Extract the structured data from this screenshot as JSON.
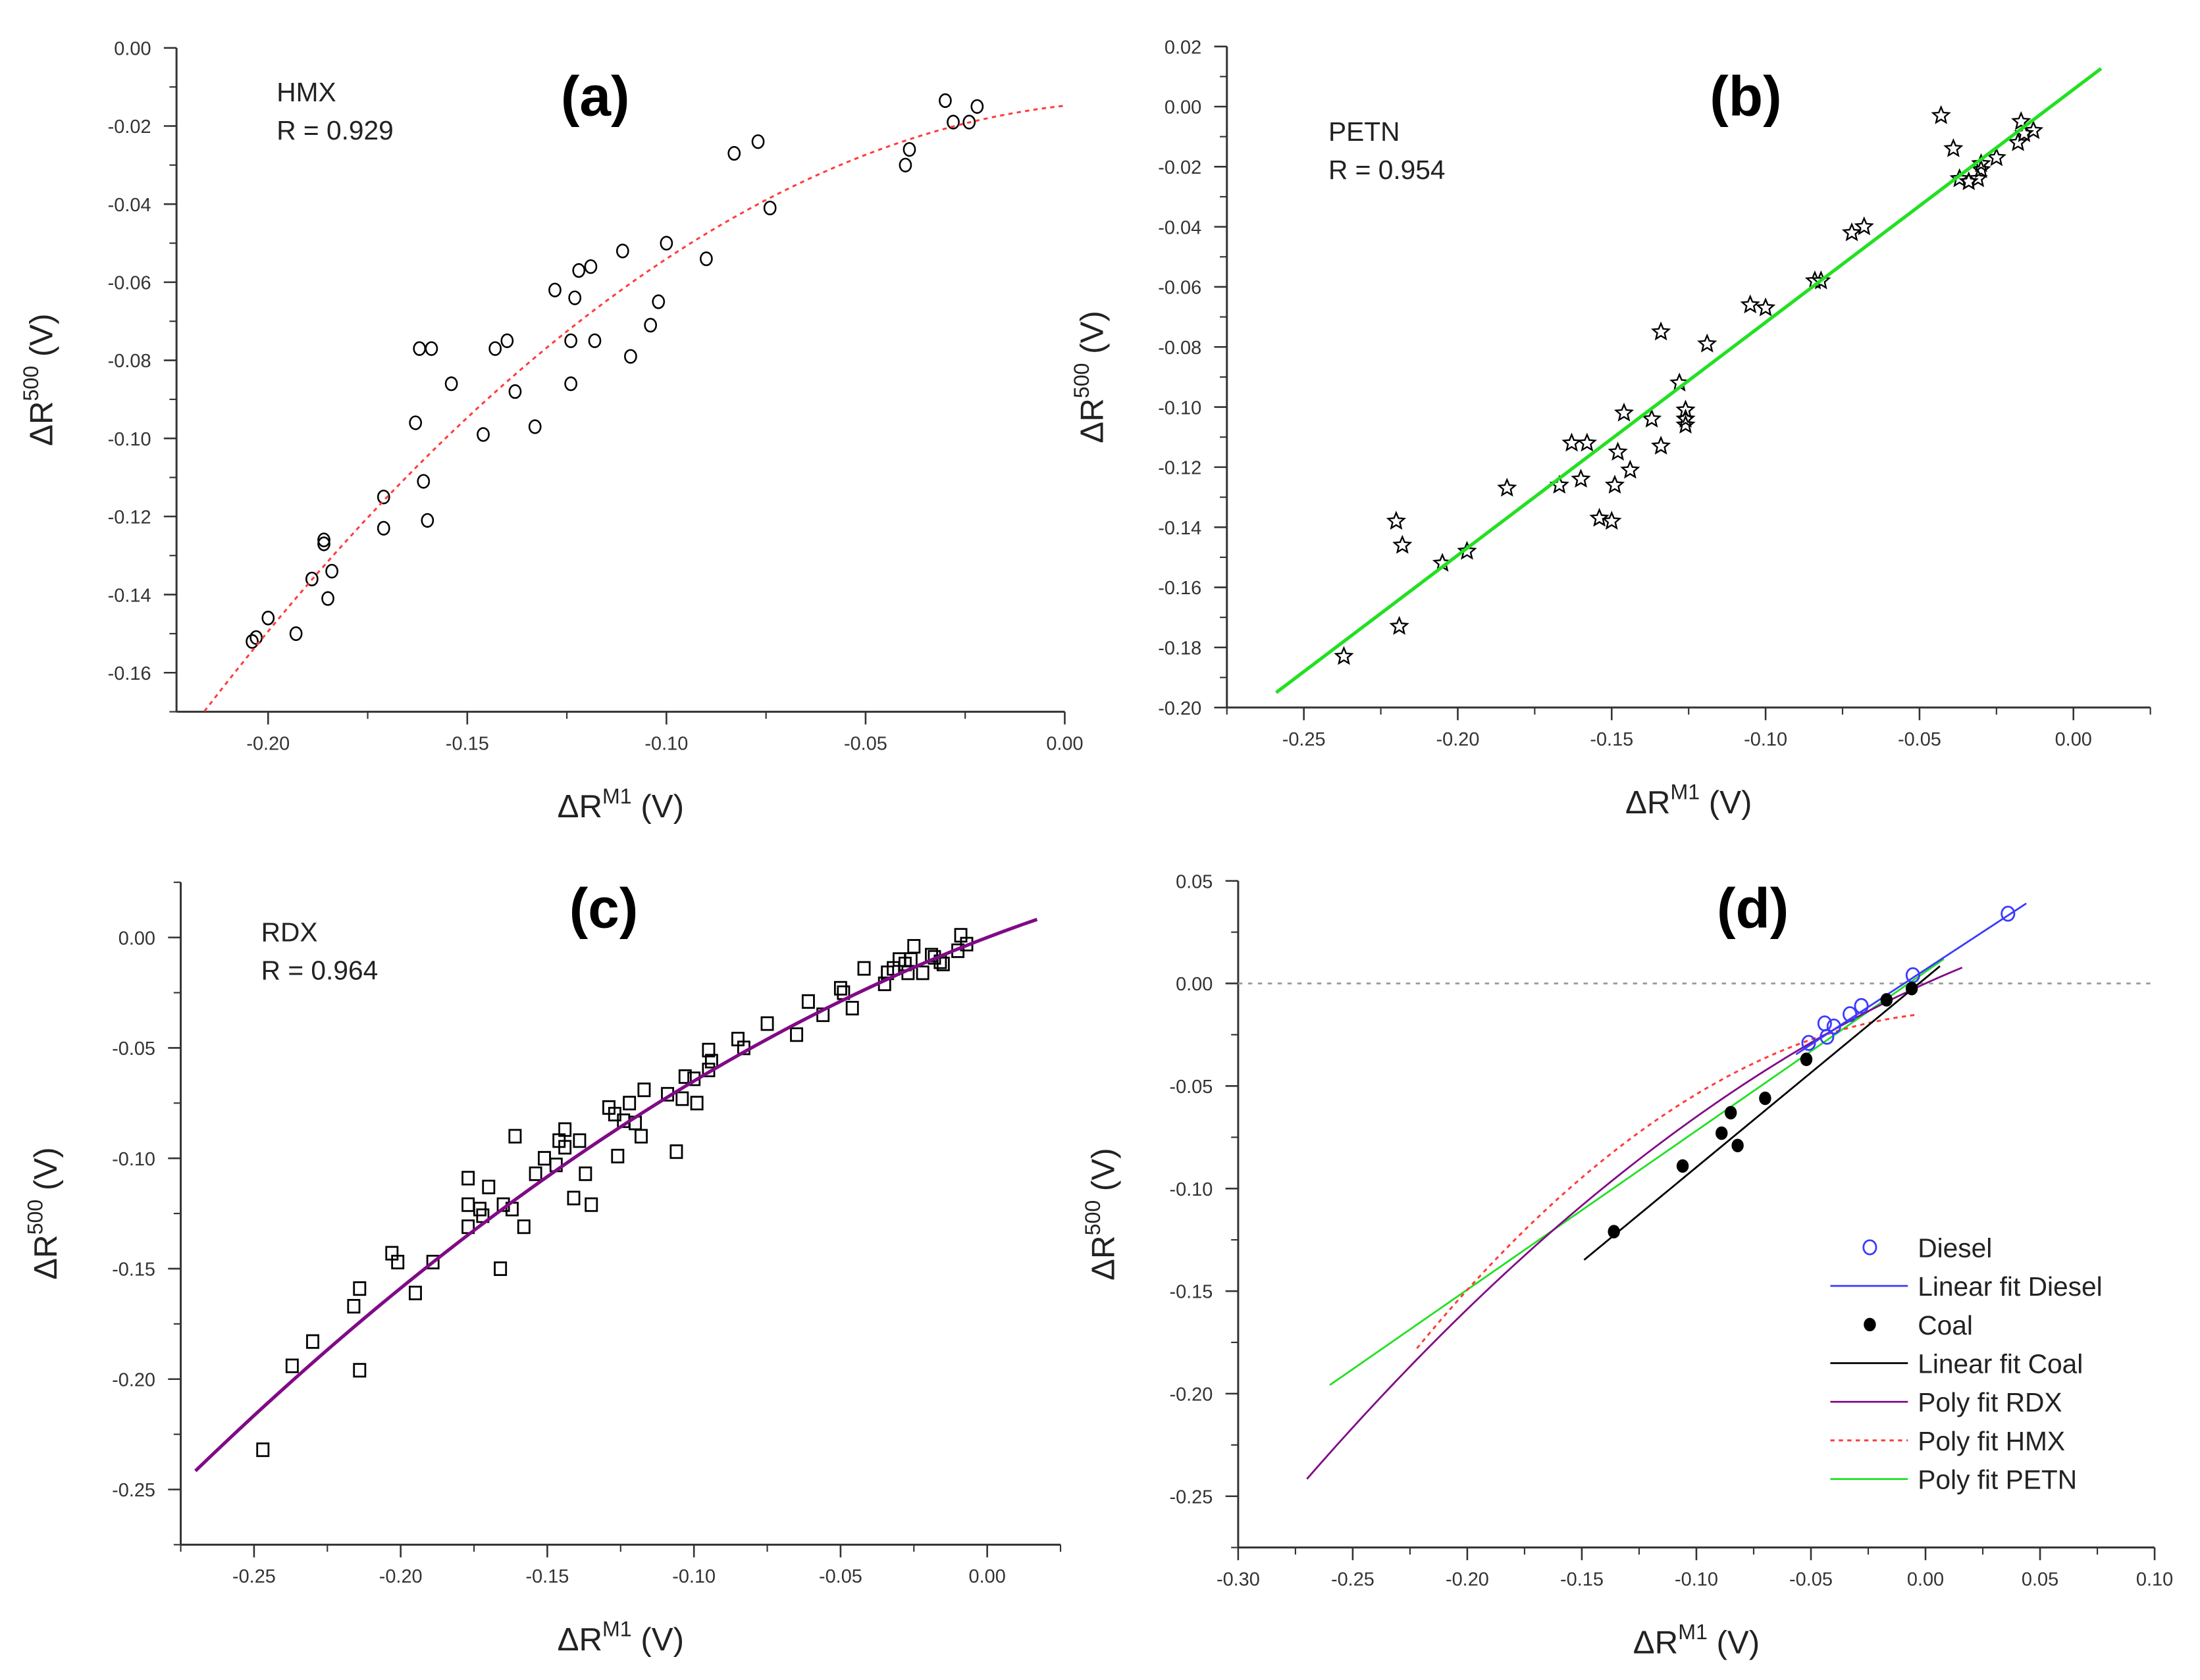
{
  "colors": {
    "axis": "#333333",
    "marker": "#000000",
    "hmx_fit": "#ff3b3b",
    "petn_fit": "#22e022",
    "rdx_fit": "#800a86",
    "diesel": "#3a3aff",
    "coal": "#000000",
    "zero_line": "#999999"
  },
  "chart_data": [
    {
      "id": "a",
      "panel_label": "(a)",
      "type": "scatter",
      "title": "HMX",
      "annotation": "R = 0.929",
      "xlabel": "ΔR",
      "xlabel_sup": "M1",
      "xlabel_unit": " (V)",
      "ylabel": "ΔR",
      "ylabel_sup": "500",
      "ylabel_unit": " (V)",
      "xlim": [
        -0.223,
        0.0
      ],
      "ylim": [
        -0.17,
        0.0
      ],
      "xticks": [
        "-0.20",
        "-0.15",
        "-0.10",
        "-0.05",
        "0.00"
      ],
      "yticks": [
        "0.00",
        "-0.02",
        "-0.04",
        "-0.06",
        "-0.08",
        "-0.10",
        "-0.12",
        "-0.14",
        "-0.16"
      ],
      "xminor": 0.025,
      "yminor": 0.01,
      "marker": "circle-open",
      "points": [
        [
          -0.204,
          -0.152
        ],
        [
          -0.203,
          -0.151
        ],
        [
          -0.2,
          -0.146
        ],
        [
          -0.193,
          -0.15
        ],
        [
          -0.189,
          -0.136
        ],
        [
          -0.186,
          -0.127
        ],
        [
          -0.186,
          -0.126
        ],
        [
          -0.184,
          -0.134
        ],
        [
          -0.185,
          -0.141
        ],
        [
          -0.171,
          -0.115
        ],
        [
          -0.171,
          -0.123
        ],
        [
          -0.163,
          -0.096
        ],
        [
          -0.162,
          -0.077
        ],
        [
          -0.159,
          -0.077
        ],
        [
          -0.161,
          -0.111
        ],
        [
          -0.16,
          -0.121
        ],
        [
          -0.154,
          -0.086
        ],
        [
          -0.146,
          -0.099
        ],
        [
          -0.143,
          -0.077
        ],
        [
          -0.14,
          -0.075
        ],
        [
          -0.138,
          -0.088
        ],
        [
          -0.133,
          -0.097
        ],
        [
          -0.128,
          -0.062
        ],
        [
          -0.124,
          -0.075
        ],
        [
          -0.124,
          -0.086
        ],
        [
          -0.123,
          -0.064
        ],
        [
          -0.122,
          -0.057
        ],
        [
          -0.119,
          -0.056
        ],
        [
          -0.118,
          -0.075
        ],
        [
          -0.111,
          -0.052
        ],
        [
          -0.109,
          -0.079
        ],
        [
          -0.104,
          -0.071
        ],
        [
          -0.102,
          -0.065
        ],
        [
          -0.1,
          -0.05
        ],
        [
          -0.09,
          -0.054
        ],
        [
          -0.083,
          -0.027
        ],
        [
          -0.077,
          -0.024
        ],
        [
          -0.074,
          -0.041
        ],
        [
          -0.04,
          -0.03
        ],
        [
          -0.039,
          -0.026
        ],
        [
          -0.03,
          -0.0135
        ],
        [
          -0.028,
          -0.019
        ],
        [
          -0.024,
          -0.019
        ],
        [
          -0.022,
          -0.015
        ]
      ],
      "fits": [
        {
          "name": "Poly fit HMX",
          "type": "poly",
          "coef": [
            -0.0148,
            0.111,
            -2.81
          ],
          "range": [
            -0.216,
            0.0
          ],
          "style": "dotted",
          "color_key": "hmx_fit"
        }
      ]
    },
    {
      "id": "b",
      "panel_label": "(b)",
      "type": "scatter",
      "title": "PETN",
      "annotation": "R = 0.954",
      "xlabel": "ΔR",
      "xlabel_sup": "M1",
      "xlabel_unit": " (V)",
      "ylabel": "ΔR",
      "ylabel_sup": "500",
      "ylabel_unit": " (V)",
      "xlim": [
        -0.275,
        0.025
      ],
      "ylim": [
        -0.2,
        0.02
      ],
      "xticks": [
        "-0.25",
        "-0.20",
        "-0.15",
        "-0.10",
        "-0.05",
        "0.00"
      ],
      "yticks": [
        "0.02",
        "0.00",
        "-0.02",
        "-0.04",
        "-0.06",
        "-0.08",
        "-0.10",
        "-0.12",
        "-0.14",
        "-0.16",
        "-0.18",
        "-0.20"
      ],
      "xminor": 0.025,
      "yminor": 0.01,
      "marker": "star-open",
      "points": [
        [
          -0.237,
          -0.183
        ],
        [
          -0.219,
          -0.173
        ],
        [
          -0.22,
          -0.138
        ],
        [
          -0.218,
          -0.146
        ],
        [
          -0.205,
          -0.152
        ],
        [
          -0.197,
          -0.148
        ],
        [
          -0.184,
          -0.127
        ],
        [
          -0.167,
          -0.126
        ],
        [
          -0.163,
          -0.112
        ],
        [
          -0.158,
          -0.112
        ],
        [
          -0.16,
          -0.124
        ],
        [
          -0.154,
          -0.137
        ],
        [
          -0.15,
          -0.138
        ],
        [
          -0.149,
          -0.126
        ],
        [
          -0.148,
          -0.115
        ],
        [
          -0.144,
          -0.121
        ],
        [
          -0.146,
          -0.102
        ],
        [
          -0.137,
          -0.104
        ],
        [
          -0.134,
          -0.113
        ],
        [
          -0.134,
          -0.075
        ],
        [
          -0.128,
          -0.092
        ],
        [
          -0.126,
          -0.101
        ],
        [
          -0.126,
          -0.104
        ],
        [
          -0.126,
          -0.106
        ],
        [
          -0.119,
          -0.079
        ],
        [
          -0.105,
          -0.066
        ],
        [
          -0.1,
          -0.067
        ],
        [
          -0.084,
          -0.058
        ],
        [
          -0.082,
          -0.058
        ],
        [
          -0.072,
          -0.042
        ],
        [
          -0.068,
          -0.04
        ],
        [
          -0.043,
          -0.003
        ],
        [
          -0.039,
          -0.014
        ],
        [
          -0.037,
          -0.024
        ],
        [
          -0.034,
          -0.025
        ],
        [
          -0.031,
          -0.024
        ],
        [
          -0.03,
          -0.021
        ],
        [
          -0.03,
          -0.019
        ],
        [
          -0.025,
          -0.017
        ],
        [
          -0.018,
          -0.012
        ],
        [
          -0.017,
          -0.005
        ],
        [
          -0.016,
          -0.009
        ],
        [
          -0.013,
          -0.008
        ]
      ],
      "fits": [
        {
          "name": "Poly fit PETN",
          "type": "poly",
          "coef": [
            0.0057,
            0.775,
            0
          ],
          "range": [
            -0.259,
            0.009
          ],
          "style": "solid-thick",
          "color_key": "petn_fit"
        }
      ]
    },
    {
      "id": "c",
      "panel_label": "(c)",
      "type": "scatter",
      "title": "RDX",
      "annotation": "R = 0.964",
      "xlabel": "ΔR",
      "xlabel_sup": "M1",
      "xlabel_unit": " (V)",
      "ylabel": "ΔR",
      "ylabel_sup": "500",
      "ylabel_unit": " (V)",
      "xlim": [
        -0.275,
        0.025
      ],
      "ylim": [
        -0.275,
        0.025
      ],
      "xticks": [
        "-0.25",
        "-0.20",
        "-0.15",
        "-0.10",
        "-0.05",
        "0.00"
      ],
      "yticks": [
        "0.00",
        "-0.05",
        "-0.10",
        "-0.15",
        "-0.20",
        "-0.25"
      ],
      "xminor": 0.025,
      "yminor": 0.025,
      "marker": "square-open",
      "points": [
        [
          -0.247,
          -0.232
        ],
        [
          -0.237,
          -0.194
        ],
        [
          -0.23,
          -0.183
        ],
        [
          -0.216,
          -0.167
        ],
        [
          -0.214,
          -0.159
        ],
        [
          -0.214,
          -0.196
        ],
        [
          -0.203,
          -0.143
        ],
        [
          -0.201,
          -0.147
        ],
        [
          -0.195,
          -0.161
        ],
        [
          -0.189,
          -0.147
        ],
        [
          -0.177,
          -0.109
        ],
        [
          -0.177,
          -0.121
        ],
        [
          -0.177,
          -0.131
        ],
        [
          -0.173,
          -0.123
        ],
        [
          -0.172,
          -0.126
        ],
        [
          -0.17,
          -0.113
        ],
        [
          -0.166,
          -0.15
        ],
        [
          -0.165,
          -0.121
        ],
        [
          -0.162,
          -0.123
        ],
        [
          -0.161,
          -0.09
        ],
        [
          -0.158,
          -0.131
        ],
        [
          -0.154,
          -0.107
        ],
        [
          -0.151,
          -0.1
        ],
        [
          -0.147,
          -0.103
        ],
        [
          -0.146,
          -0.092
        ],
        [
          -0.144,
          -0.095
        ],
        [
          -0.144,
          -0.087
        ],
        [
          -0.141,
          -0.118
        ],
        [
          -0.139,
          -0.092
        ],
        [
          -0.137,
          -0.107
        ],
        [
          -0.135,
          -0.121
        ],
        [
          -0.129,
          -0.077
        ],
        [
          -0.127,
          -0.08
        ],
        [
          -0.126,
          -0.099
        ],
        [
          -0.124,
          -0.083
        ],
        [
          -0.122,
          -0.075
        ],
        [
          -0.12,
          -0.084
        ],
        [
          -0.118,
          -0.09
        ],
        [
          -0.117,
          -0.069
        ],
        [
          -0.109,
          -0.071
        ],
        [
          -0.106,
          -0.097
        ],
        [
          -0.104,
          -0.073
        ],
        [
          -0.103,
          -0.063
        ],
        [
          -0.1,
          -0.064
        ],
        [
          -0.099,
          -0.075
        ],
        [
          -0.095,
          -0.051
        ],
        [
          -0.095,
          -0.06
        ],
        [
          -0.094,
          -0.056
        ],
        [
          -0.085,
          -0.046
        ],
        [
          -0.083,
          -0.05
        ],
        [
          -0.075,
          -0.039
        ],
        [
          -0.065,
          -0.044
        ],
        [
          -0.061,
          -0.029
        ],
        [
          -0.056,
          -0.035
        ],
        [
          -0.05,
          -0.023
        ],
        [
          -0.049,
          -0.025
        ],
        [
          -0.046,
          -0.032
        ],
        [
          -0.042,
          -0.014
        ],
        [
          -0.035,
          -0.021
        ],
        [
          -0.034,
          -0.016
        ],
        [
          -0.032,
          -0.014
        ],
        [
          -0.03,
          -0.01
        ],
        [
          -0.028,
          -0.012
        ],
        [
          -0.027,
          -0.016
        ],
        [
          -0.025,
          -0.004
        ],
        [
          -0.026,
          -0.01
        ],
        [
          -0.022,
          -0.016
        ],
        [
          -0.019,
          -0.008
        ],
        [
          -0.018,
          -0.009
        ],
        [
          -0.016,
          -0.011
        ],
        [
          -0.015,
          -0.012
        ],
        [
          -0.01,
          -0.006
        ],
        [
          -0.009,
          0.001
        ],
        [
          -0.007,
          -0.003
        ]
      ],
      "fits": [
        {
          "name": "Poly fit RDX",
          "type": "poly",
          "coef": [
            0.0,
            0.506,
            -1.44
          ],
          "range": [
            -0.27,
            0.017
          ],
          "style": "solid-thick",
          "color_key": "rdx_fit"
        }
      ]
    },
    {
      "id": "d",
      "panel_label": "(d)",
      "type": "scatter",
      "xlabel": "ΔR",
      "xlabel_sup": "M1",
      "xlabel_unit": " (V)",
      "ylabel": "ΔR",
      "ylabel_sup": "500",
      "ylabel_unit": " (V)",
      "xlim": [
        -0.3,
        0.1
      ],
      "ylim": [
        -0.275,
        0.05
      ],
      "xticks": [
        "-0.30",
        "-0.25",
        "-0.20",
        "-0.15",
        "-0.10",
        "-0.05",
        "0.00",
        "0.05",
        "0.10"
      ],
      "yticks": [
        "0.05",
        "0.00",
        "-0.05",
        "-0.10",
        "-0.15",
        "-0.20",
        "-0.25"
      ],
      "xminor": 0.025,
      "yminor": 0.025,
      "zero_line": true,
      "legend_position": "bottom-right",
      "series": [
        {
          "name": "Diesel",
          "marker": "circle-open-blue",
          "color_key": "diesel",
          "points": [
            [
              0.036,
              0.034
            ],
            [
              -0.044,
              -0.0195
            ],
            [
              -0.04,
              -0.021
            ],
            [
              -0.043,
              -0.026
            ],
            [
              -0.051,
              -0.029
            ],
            [
              -0.033,
              -0.015
            ],
            [
              -0.028,
              -0.011
            ],
            [
              -0.0055,
              0.004
            ]
          ]
        },
        {
          "name": "Coal",
          "marker": "circle-filled",
          "color_key": "coal",
          "points": [
            [
              -0.136,
              -0.121
            ],
            [
              -0.106,
              -0.089
            ],
            [
              -0.089,
              -0.073
            ],
            [
              -0.082,
              -0.079
            ],
            [
              -0.085,
              -0.063
            ],
            [
              -0.07,
              -0.056
            ],
            [
              -0.052,
              -0.037
            ],
            [
              -0.017,
              -0.008
            ],
            [
              -0.006,
              -0.0025
            ]
          ]
        }
      ],
      "fits": [
        {
          "name": "Linear fit Diesel",
          "type": "poly",
          "coef": [
            0.0068,
            0.732,
            0
          ],
          "range": [
            -0.0565,
            0.044
          ],
          "style": "solid",
          "color_key": "diesel"
        },
        {
          "name": "Linear fit Coal",
          "type": "poly",
          "coef": [
            0.0026,
            0.922,
            0
          ],
          "range": [
            -0.149,
            0.0063
          ],
          "style": "solid",
          "color_key": "coal"
        },
        {
          "name": "Poly fit RDX",
          "type": "poly",
          "coef": [
            0.0,
            0.506,
            -1.44
          ],
          "range": [
            -0.27,
            0.016
          ],
          "style": "solid",
          "color_key": "rdx_fit"
        },
        {
          "name": "Poly fit HMX",
          "type": "poly",
          "coef": [
            -0.0148,
            0.111,
            -2.81
          ],
          "range": [
            -0.222,
            -0.003
          ],
          "style": "dotted",
          "color_key": "hmx_fit"
        },
        {
          "name": "Poly fit PETN",
          "type": "poly",
          "coef": [
            0.0057,
            0.775,
            0
          ],
          "range": [
            -0.26,
            0.008
          ],
          "style": "solid",
          "color_key": "petn_fit"
        }
      ],
      "legend": [
        "Diesel",
        "Linear fit Diesel",
        "Coal",
        "Linear fit Coal",
        "Poly fit RDX",
        "Poly fit HMX",
        "Poly fit PETN"
      ]
    }
  ]
}
